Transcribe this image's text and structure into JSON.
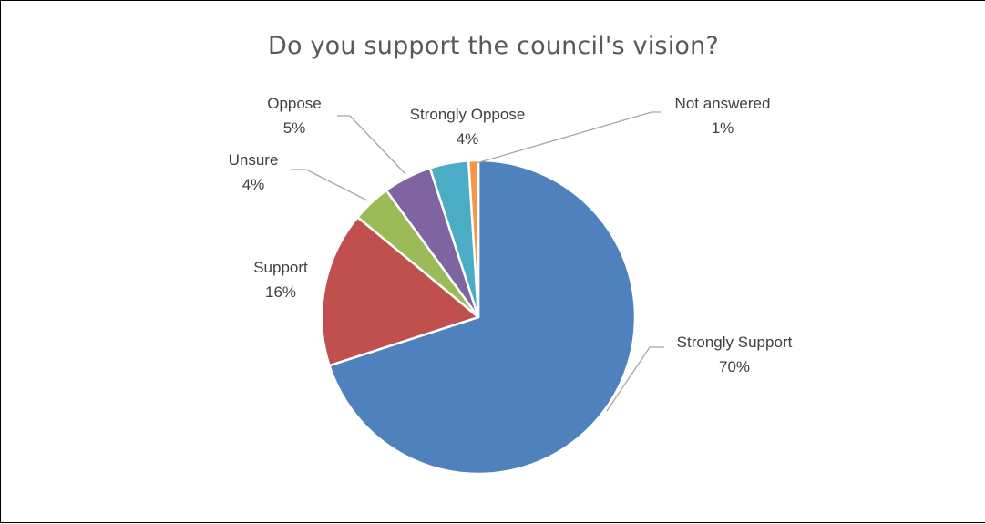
{
  "chart_data": {
    "type": "pie",
    "title": "Do you support the council's vision?",
    "start_angle_deg": 0,
    "direction": "clockwise",
    "slices": [
      {
        "label": "Strongly Support",
        "value": 70,
        "value_label": "70%",
        "color": "#4F81BD"
      },
      {
        "label": "Support",
        "value": 16,
        "value_label": "16%",
        "color": "#C0504D"
      },
      {
        "label": "Unsure",
        "value": 4,
        "value_label": "4%",
        "color": "#9BBB59"
      },
      {
        "label": "Oppose",
        "value": 5,
        "value_label": "5%",
        "color": "#8064A2"
      },
      {
        "label": "Strongly Oppose",
        "value": 4,
        "value_label": "4%",
        "color": "#4BACC6"
      },
      {
        "label": "Not answered",
        "value": 1,
        "value_label": "1%",
        "color": "#F79646"
      }
    ]
  }
}
